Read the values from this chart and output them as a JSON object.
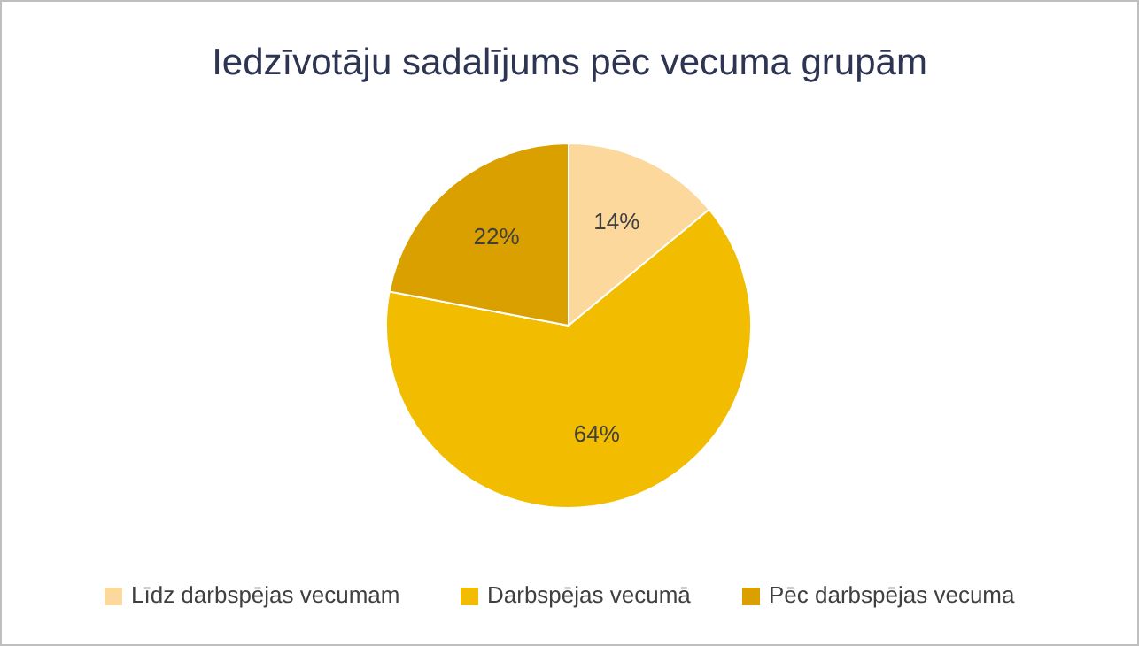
{
  "chart_data": {
    "type": "pie",
    "title": "Iedzīvotāju sadalījums pēc vecuma grupām",
    "categories": [
      "Līdz darbspējas vecumam",
      "Darbspējas vecumā",
      "Pēc darbspējas vecuma"
    ],
    "values": [
      14,
      64,
      22
    ],
    "colors": [
      "#fcd89c",
      "#f2bc00",
      "#d9a000"
    ],
    "value_labels": [
      "14%",
      "64%",
      "22%"
    ],
    "legend": "bottom"
  }
}
